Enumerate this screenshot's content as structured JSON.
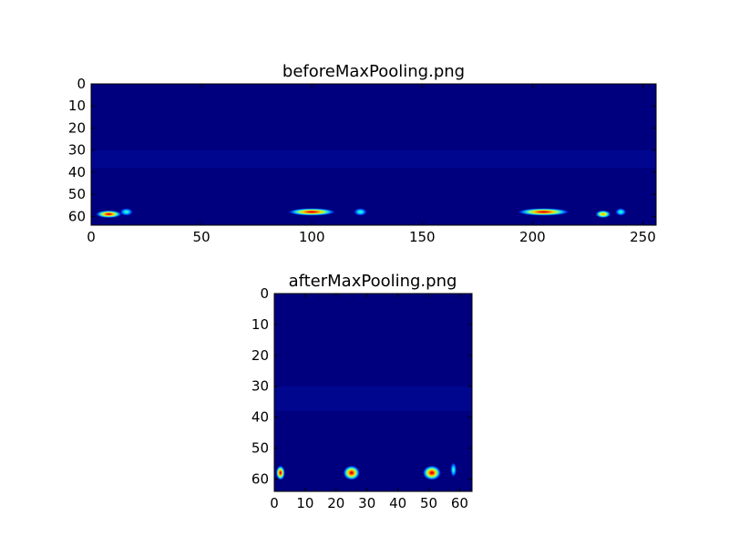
{
  "chart_data": [
    {
      "type": "heatmap",
      "title": "beforeMaxPooling.png",
      "xlim": [
        0,
        256
      ],
      "ylim": [
        0,
        64
      ],
      "y_inverted": true,
      "x_ticks": [
        0,
        50,
        100,
        150,
        200,
        250
      ],
      "y_ticks": [
        0,
        10,
        20,
        30,
        40,
        50,
        60
      ],
      "colormap": "jet",
      "background_color": "#00007f",
      "grid": false,
      "hotspots": [
        {
          "x": 8,
          "y": 59,
          "width": 12,
          "height": 1.6,
          "intensity": 1.0
        },
        {
          "x": 16,
          "y": 58,
          "width": 6,
          "height": 1.6,
          "intensity": 0.6
        },
        {
          "x": 100,
          "y": 58,
          "width": 22,
          "height": 1.6,
          "intensity": 1.0
        },
        {
          "x": 122,
          "y": 58,
          "width": 6,
          "height": 1.6,
          "intensity": 0.6
        },
        {
          "x": 205,
          "y": 58,
          "width": 24,
          "height": 1.6,
          "intensity": 1.0
        },
        {
          "x": 232,
          "y": 59,
          "width": 7,
          "height": 1.6,
          "intensity": 0.75
        },
        {
          "x": 240,
          "y": 58,
          "width": 5,
          "height": 1.6,
          "intensity": 0.55
        }
      ]
    },
    {
      "type": "heatmap",
      "title": "afterMaxPooling.png",
      "xlim": [
        0,
        64
      ],
      "ylim": [
        0,
        64
      ],
      "y_inverted": true,
      "x_ticks": [
        0,
        10,
        20,
        30,
        40,
        50,
        60
      ],
      "y_ticks": [
        0,
        10,
        20,
        30,
        40,
        50,
        60
      ],
      "colormap": "jet",
      "background_color": "#00007f",
      "grid": false,
      "hotspots": [
        {
          "x": 2,
          "y": 58,
          "width": 3,
          "height": 2.2,
          "intensity": 0.9
        },
        {
          "x": 25,
          "y": 58,
          "width": 5.5,
          "height": 2.2,
          "intensity": 1.0
        },
        {
          "x": 51,
          "y": 58,
          "width": 6,
          "height": 2.2,
          "intensity": 1.0
        },
        {
          "x": 58,
          "y": 57,
          "width": 2,
          "height": 2.2,
          "intensity": 0.6
        }
      ]
    }
  ]
}
